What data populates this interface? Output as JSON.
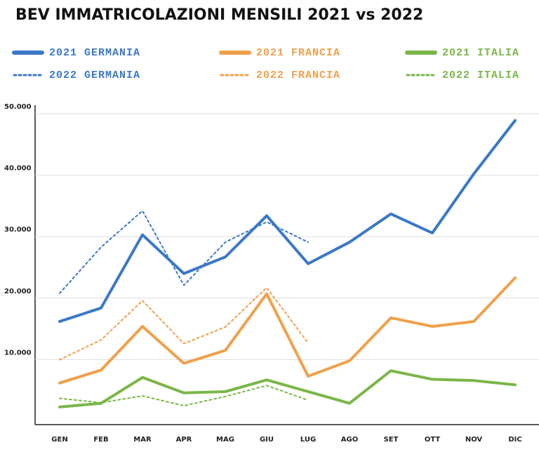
{
  "chart_data": {
    "type": "line",
    "title": "BEV IMMATRICOLAZIONI MENSILI 2021 vs 2022",
    "categories": [
      "GEN",
      "FEB",
      "MAR",
      "APR",
      "MAG",
      "GIU",
      "LUG",
      "AGO",
      "SET",
      "OTT",
      "NOV",
      "DIC"
    ],
    "series": [
      {
        "name": "2021 GERMANIA",
        "color": "#3b78c8",
        "style": "solid",
        "values": [
          16200,
          18400,
          30300,
          24000,
          26700,
          33400,
          25600,
          29100,
          33700,
          30600,
          40200,
          48900
        ]
      },
      {
        "name": "2021 FRANCIA",
        "color": "#f0a04b",
        "style": "solid",
        "values": [
          6200,
          8300,
          15400,
          9400,
          11500,
          20700,
          7300,
          9800,
          16800,
          15400,
          16200,
          23300
        ]
      },
      {
        "name": "2021 ITALIA",
        "color": "#7ab648",
        "style": "solid",
        "values": [
          2300,
          2900,
          7100,
          4600,
          4800,
          6700,
          4800,
          2900,
          8200,
          6800,
          6600,
          5900
        ]
      },
      {
        "name": "2022 GERMANIA",
        "color": "#3b78c8",
        "style": "dotted",
        "values": [
          20800,
          28300,
          34200,
          22100,
          29100,
          32400,
          29100,
          null,
          null,
          null,
          null,
          null
        ]
      },
      {
        "name": "2022 FRANCIA",
        "color": "#f0a04b",
        "style": "dotted",
        "values": [
          10000,
          13200,
          19600,
          12600,
          15300,
          21700,
          12700,
          null,
          null,
          null,
          null,
          null
        ]
      },
      {
        "name": "2022 ITALIA",
        "color": "#7ab648",
        "style": "dotted",
        "values": [
          3700,
          3000,
          4100,
          2500,
          4000,
          5800,
          3400,
          null,
          null,
          null,
          null,
          null
        ]
      }
    ],
    "ylim": [
      0,
      50000
    ],
    "yticks": [
      {
        "value": 10000,
        "label": "10.000"
      },
      {
        "value": 20000,
        "label": "20.000"
      },
      {
        "value": 30000,
        "label": "30.000"
      },
      {
        "value": 40000,
        "label": "40.000"
      },
      {
        "value": 50000,
        "label": "50.000"
      }
    ],
    "grid": true,
    "legend": "top"
  }
}
